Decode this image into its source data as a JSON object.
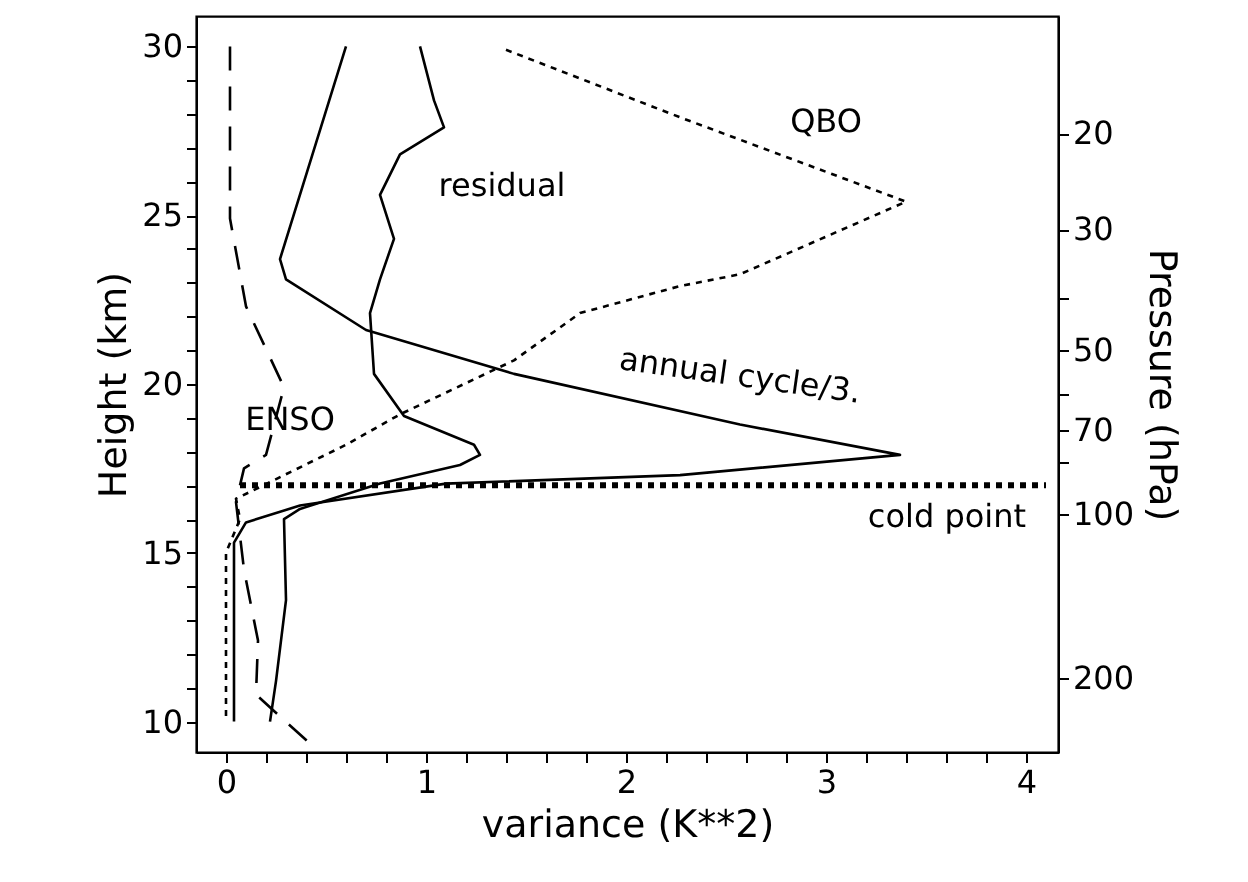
{
  "chart_data": {
    "type": "line",
    "xlabel": "variance (K**2)",
    "ylabel": "Height (km)",
    "y2label": "Pressure (hPa)",
    "xlim": [
      -0.15,
      4.16
    ],
    "ylim": [
      9.1,
      30.9
    ],
    "y2lim": [
      273,
      12.2
    ],
    "log": "y2",
    "xticks": [
      0,
      {
        "value": 0.2,
        "label": null
      },
      {
        "value": 0.4,
        "label": null
      },
      {
        "value": 0.6,
        "label": null
      },
      {
        "value": 0.8,
        "label": null
      },
      1,
      {
        "value": 1.2,
        "label": null
      },
      {
        "value": 1.4,
        "label": null
      },
      {
        "value": 1.6,
        "label": null
      },
      {
        "value": 1.8,
        "label": null
      },
      2,
      {
        "value": 2.2,
        "label": null
      },
      {
        "value": 2.4,
        "label": null
      },
      {
        "value": 2.6,
        "label": null
      },
      {
        "value": 2.8,
        "label": null
      },
      3,
      {
        "value": 3.2,
        "label": null
      },
      {
        "value": 3.4,
        "label": null
      },
      {
        "value": 3.6,
        "label": null
      },
      {
        "value": 3.8,
        "label": null
      },
      4
    ],
    "yticks": [
      10,
      {
        "value": 11,
        "label": null
      },
      {
        "value": 12,
        "label": null
      },
      {
        "value": 13,
        "label": null
      },
      {
        "value": 14,
        "label": null
      },
      15,
      {
        "value": 16,
        "label": null
      },
      {
        "value": 17,
        "label": null
      },
      {
        "value": 18,
        "label": null
      },
      {
        "value": 19,
        "label": null
      },
      20,
      {
        "value": 21,
        "label": null
      },
      {
        "value": 22,
        "label": null
      },
      {
        "value": 23,
        "label": null
      },
      {
        "value": 24,
        "label": null
      },
      25,
      {
        "value": 26,
        "label": null
      },
      {
        "value": 27,
        "label": null
      },
      {
        "value": 28,
        "label": null
      },
      {
        "value": 29,
        "label": null
      },
      30
    ],
    "y2ticks": [
      20,
      30,
      {
        "value": 40,
        "label": null
      },
      50,
      {
        "value": 60,
        "label": null
      },
      70,
      {
        "value": 80,
        "label": null
      },
      100,
      200
    ],
    "grid": false,
    "series": [
      {
        "color": "#000000",
        "line_style": "solid",
        "x": [
          0.6,
          0.27,
          0.3,
          0.7,
          1.44,
          2.57,
          3.37,
          2.27,
          1.1,
          0.37,
          0.1,
          0.04,
          0.04,
          0.04
        ],
        "values": [
          30,
          23.7,
          23.1,
          21.6,
          20.3,
          18.8,
          17.9,
          17.3,
          17.05,
          16.4,
          15.9,
          15.3,
          13.6,
          10
        ]
      },
      {
        "color": "#000000",
        "line_style": "solid",
        "x": [
          0.97,
          1.04,
          1.09,
          0.87,
          0.77,
          0.84,
          0.77,
          0.72,
          0.74,
          0.89,
          1.24,
          1.27,
          1.17,
          0.77,
          0.37,
          0.29,
          0.3,
          0.25,
          0.22
        ],
        "values": [
          30,
          28.4,
          27.6,
          26.8,
          25.6,
          24.3,
          23.1,
          22.1,
          20.3,
          19.05,
          18.2,
          17.9,
          17.6,
          17.05,
          16.3,
          16,
          13.6,
          11.2,
          10
        ]
      },
      {
        "color": "#000000",
        "line_style": "dotted",
        "x": [
          1.4,
          2.27,
          3.4,
          2.57,
          2.27,
          1.77,
          1.44,
          0.87,
          0.6,
          0.05,
          0.07,
          0.0,
          0.0
        ],
        "values": [
          29.9,
          27.9,
          25.4,
          23.25,
          22.9,
          22.1,
          20.7,
          19.1,
          18.2,
          16.6,
          16,
          15,
          10
        ]
      },
      {
        "color": "#000000",
        "line_style": "dashed",
        "x": [
          0.02,
          0.02,
          0.1,
          0.29,
          0.2,
          0.09,
          0.05,
          0.07,
          0.09,
          0.16,
          0.15,
          0.42
        ],
        "values": [
          30,
          24.9,
          22.3,
          19.9,
          17.9,
          17.5,
          16.5,
          15.5,
          14.5,
          12.4,
          10.8,
          9.35
        ]
      }
    ],
    "ref_lines": [
      {
        "axis": "y",
        "value": 17,
        "label": "cold point",
        "line_style": "dotted",
        "color": "#000000"
      }
    ],
    "annotations": [
      "residual",
      "QBO",
      "annual cycle/3.",
      "ENSO"
    ]
  }
}
